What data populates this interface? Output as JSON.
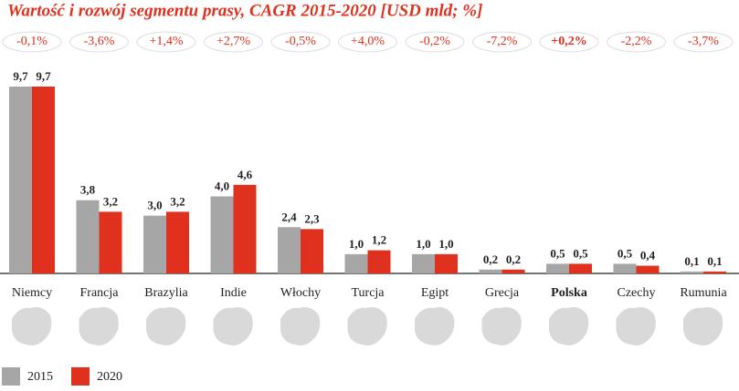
{
  "chart_data": {
    "type": "bar",
    "title": "Wartość i rozwój segmentu prasy, CAGR 2015-2020 [USD mld; %]",
    "categories": [
      "Niemcy",
      "Francja",
      "Brazylia",
      "Indie",
      "Włochy",
      "Turcja",
      "Egipt",
      "Grecja",
      "Polska",
      "Czechy",
      "Rumunia"
    ],
    "annotations": [
      "-0,1%",
      "-3,6%",
      "+1,4%",
      "+2,7%",
      "-0,5%",
      "+4,0%",
      "-0,2%",
      "-7,2%",
      "+0,2%",
      "-2,2%",
      "-3,7%"
    ],
    "highlight_index": 8,
    "series": [
      {
        "name": "2015",
        "color": "#a6a6a6",
        "values": [
          9.7,
          3.8,
          3.0,
          4.0,
          2.4,
          1.0,
          1.0,
          0.2,
          0.5,
          0.5,
          0.1
        ],
        "value_labels": [
          "9,7",
          "3,8",
          "3,0",
          "4,0",
          "2,4",
          "1,0",
          "1,0",
          "0,2",
          "0,5",
          "0,5",
          "0,1"
        ]
      },
      {
        "name": "2020",
        "color": "#e0301e",
        "values": [
          9.7,
          3.2,
          3.2,
          4.6,
          2.3,
          1.2,
          1.0,
          0.2,
          0.5,
          0.4,
          0.1
        ],
        "value_labels": [
          "9,7",
          "3,2",
          "3,2",
          "4,6",
          "2,3",
          "1,2",
          "1,0",
          "0,2",
          "0,5",
          "0,4",
          "0,1"
        ]
      }
    ]
  }
}
